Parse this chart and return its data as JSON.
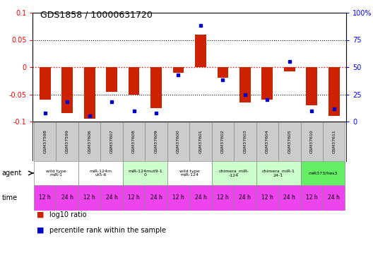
{
  "title": "GDS1858 / 10000631720",
  "samples": [
    "GSM37598",
    "GSM37599",
    "GSM37606",
    "GSM37607",
    "GSM37608",
    "GSM37609",
    "GSM37600",
    "GSM37601",
    "GSM37602",
    "GSM37603",
    "GSM37604",
    "GSM37605",
    "GSM37610",
    "GSM37611"
  ],
  "log10_ratio": [
    -0.06,
    -0.085,
    -0.095,
    -0.045,
    -0.05,
    -0.075,
    -0.01,
    0.06,
    -0.02,
    -0.065,
    -0.06,
    -0.008,
    -0.07,
    -0.09
  ],
  "percentile_rank": [
    8,
    18,
    5,
    18,
    10,
    8,
    43,
    88,
    38,
    25,
    20,
    55,
    10,
    12
  ],
  "agents": [
    {
      "label": "wild type\nmiR-1",
      "samples": [
        0,
        1
      ],
      "color": "#ffffff"
    },
    {
      "label": "miR-124m\nut5-6",
      "samples": [
        2,
        3
      ],
      "color": "#ffffff"
    },
    {
      "label": "miR-124mut9-1\n0",
      "samples": [
        4,
        5
      ],
      "color": "#ccffcc"
    },
    {
      "label": "wild type\nmiR-124",
      "samples": [
        6,
        7
      ],
      "color": "#ffffff"
    },
    {
      "label": "chimera_miR-\n-124",
      "samples": [
        8,
        9
      ],
      "color": "#ccffcc"
    },
    {
      "label": "chimera_miR-1\n24-1",
      "samples": [
        10,
        11
      ],
      "color": "#ccffcc"
    },
    {
      "label": "miR373/hes3",
      "samples": [
        12,
        13
      ],
      "color": "#66ee66"
    }
  ],
  "time_labels": [
    "12 h",
    "24 h",
    "12 h",
    "24 h",
    "12 h",
    "24 h",
    "12 h",
    "24 h",
    "12 h",
    "24 h",
    "12 h",
    "24 h",
    "12 h",
    "24 h"
  ],
  "time_color": "#ee44ee",
  "bar_color": "#cc2200",
  "dot_color": "#0000cc",
  "ylim_left": [
    -0.1,
    0.1
  ],
  "ylim_right": [
    0,
    100
  ],
  "yticks_left": [
    -0.1,
    -0.05,
    0,
    0.05,
    0.1
  ],
  "ytick_labels_left": [
    "-0.1",
    "-0.05",
    "0",
    "0.05",
    "0.1"
  ],
  "yticks_right": [
    0,
    25,
    50,
    75,
    100
  ],
  "ytick_labels_right": [
    "0",
    "25",
    "50",
    "75",
    "100%"
  ]
}
